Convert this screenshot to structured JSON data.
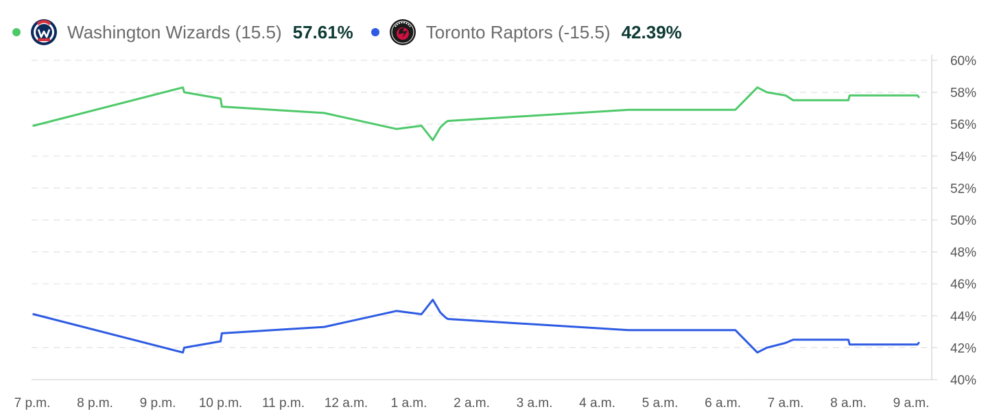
{
  "legend": {
    "team1": {
      "name": "Washington Wizards (15.5)",
      "pct": "57.61%",
      "color": "#4ec96a",
      "icon": "washington-wizards-logo-icon"
    },
    "team2": {
      "name": "Toronto Raptors (-15.5)",
      "pct": "42.39%",
      "color": "#2d5be3",
      "icon": "toronto-raptors-logo-icon"
    }
  },
  "chart_data": {
    "type": "line",
    "x_tick_labels": [
      "7 p.m.",
      "8 p.m.",
      "9 p.m.",
      "10 p.m.",
      "11 p.m.",
      "12 a.m.",
      "1 a.m.",
      "2 a.m.",
      "3 a.m.",
      "4 a.m.",
      "5 a.m.",
      "6 a.m.",
      "7 a.m.",
      "8 a.m.",
      "9 a.m."
    ],
    "y_tick_labels": [
      "40%",
      "42%",
      "44%",
      "46%",
      "48%",
      "50%",
      "52%",
      "54%",
      "56%",
      "58%",
      "60%"
    ],
    "ylim": [
      40,
      60
    ],
    "y_ticks": [
      40,
      42,
      44,
      46,
      48,
      50,
      52,
      54,
      56,
      58,
      60
    ],
    "grid": true,
    "legend_position": "top-left",
    "series": [
      {
        "name": "Washington Wizards (15.5)",
        "color": "#4ec96a",
        "points": [
          [
            0.02,
            55.9
          ],
          [
            2.4,
            58.3
          ],
          [
            2.42,
            58.0
          ],
          [
            3.0,
            57.6
          ],
          [
            3.02,
            57.1
          ],
          [
            4.65,
            56.7
          ],
          [
            5.8,
            55.7
          ],
          [
            6.2,
            55.9
          ],
          [
            6.38,
            55.0
          ],
          [
            6.5,
            55.8
          ],
          [
            6.58,
            56.1
          ],
          [
            6.62,
            56.2
          ],
          [
            9.5,
            56.9
          ],
          [
            11.2,
            56.9
          ],
          [
            11.55,
            58.3
          ],
          [
            11.7,
            58.0
          ],
          [
            12.0,
            57.8
          ],
          [
            12.12,
            57.5
          ],
          [
            13.0,
            57.5
          ],
          [
            13.02,
            57.8
          ],
          [
            14.1,
            57.8
          ],
          [
            14.12,
            57.7
          ]
        ]
      },
      {
        "name": "Toronto Raptors (-15.5)",
        "color": "#2d5be3",
        "points": [
          [
            0.02,
            44.1
          ],
          [
            2.4,
            41.7
          ],
          [
            2.42,
            42.0
          ],
          [
            3.0,
            42.4
          ],
          [
            3.02,
            42.9
          ],
          [
            4.65,
            43.3
          ],
          [
            5.8,
            44.3
          ],
          [
            6.2,
            44.1
          ],
          [
            6.38,
            45.0
          ],
          [
            6.5,
            44.2
          ],
          [
            6.58,
            43.9
          ],
          [
            6.62,
            43.8
          ],
          [
            9.5,
            43.1
          ],
          [
            11.2,
            43.1
          ],
          [
            11.55,
            41.7
          ],
          [
            11.7,
            42.0
          ],
          [
            12.0,
            42.3
          ],
          [
            12.12,
            42.5
          ],
          [
            13.0,
            42.5
          ],
          [
            13.02,
            42.2
          ],
          [
            14.1,
            42.2
          ],
          [
            14.12,
            42.3
          ]
        ]
      }
    ]
  }
}
